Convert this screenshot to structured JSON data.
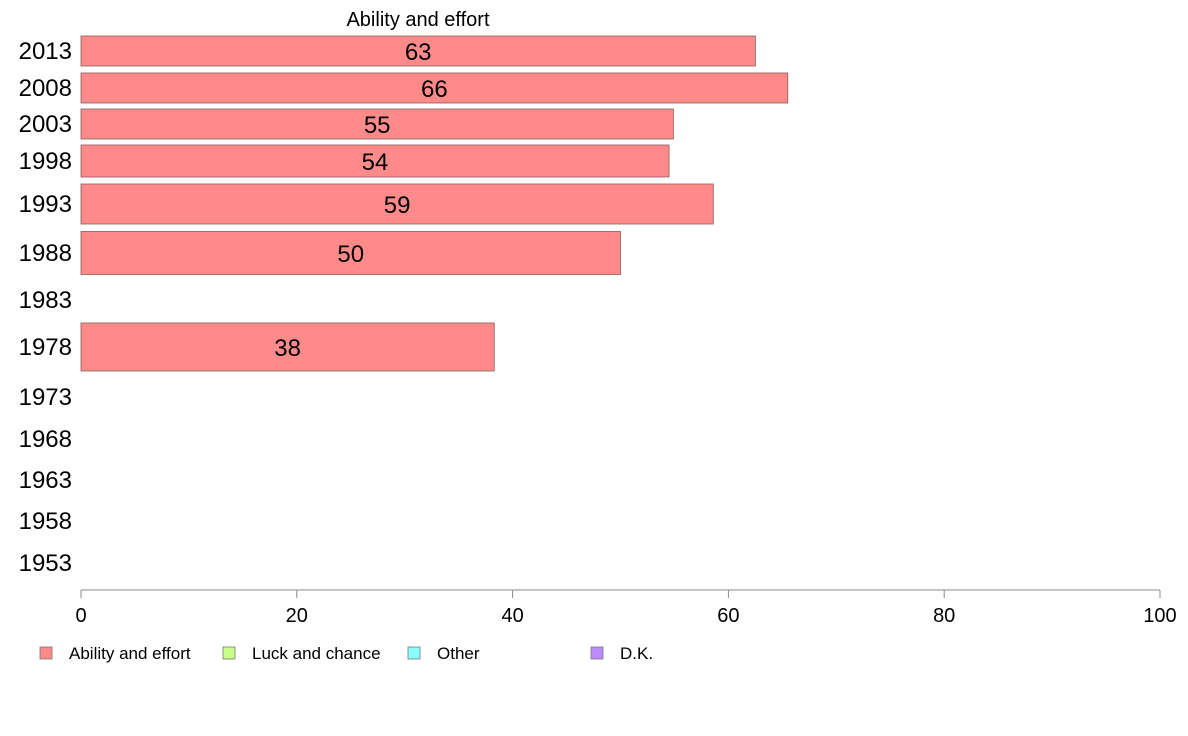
{
  "chart_data": {
    "type": "bar",
    "orientation": "horizontal",
    "title": "Ability and effort",
    "categories": [
      "2013",
      "2008",
      "2003",
      "1998",
      "1993",
      "1988",
      "1983",
      "1978",
      "1973",
      "1968",
      "1963",
      "1958",
      "1953"
    ],
    "series": [
      {
        "name": "Ability and effort",
        "color": "#ff8a8a",
        "values": [
          62.5,
          65.5,
          54.9,
          54.5,
          58.6,
          50.0,
          null,
          38.3,
          null,
          null,
          null,
          null,
          null
        ],
        "labels": [
          "63",
          "66",
          "55",
          "54",
          "59",
          "50",
          "",
          "38",
          "",
          "",
          "",
          "",
          ""
        ]
      }
    ],
    "xlim": [
      0,
      100
    ],
    "xticks": [
      "0",
      "20",
      "40",
      "60",
      "80",
      "100"
    ],
    "grid": false,
    "legend": {
      "position": "bottom-left",
      "items": [
        {
          "label": "Ability and effort",
          "color": "#ff8a8a"
        },
        {
          "label": "Luck and chance",
          "color": "#c8ff8a"
        },
        {
          "label": "Other",
          "color": "#8affff"
        },
        {
          "label": "D.K.",
          "color": "#c08aff"
        }
      ]
    }
  }
}
